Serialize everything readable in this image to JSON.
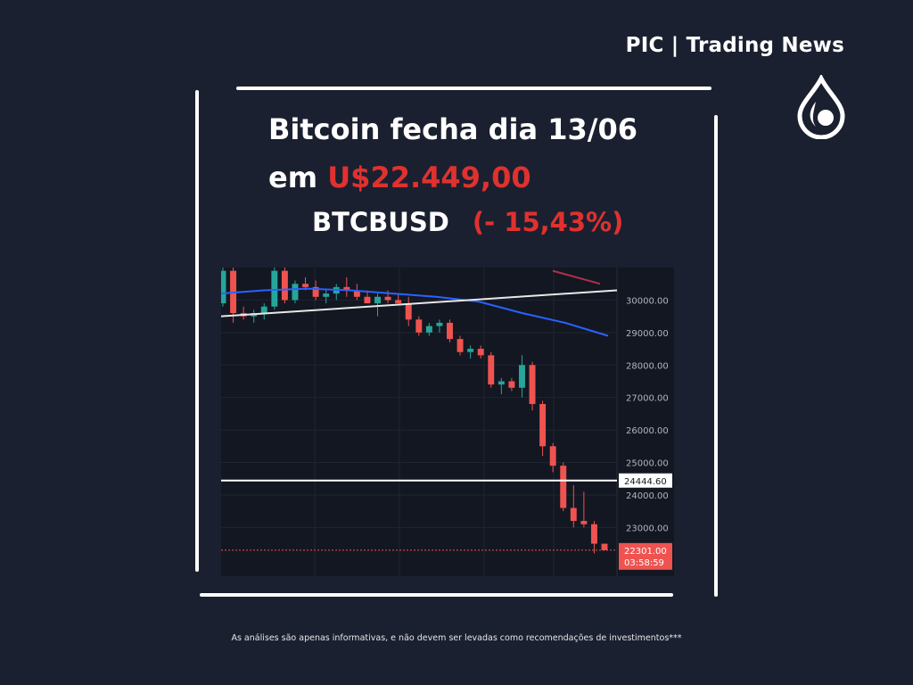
{
  "brand": "PIC | Trading News",
  "logo_icon": "drop-flame-icon",
  "headline": {
    "line1": "Bitcoin fecha dia 13/06",
    "line2_prefix": "em",
    "line2_price": "U$22.449,00"
  },
  "ticker": {
    "symbol": "BTCBUSD",
    "change": "(- 15,43%)"
  },
  "colors": {
    "background": "#1b2030",
    "accent_red": "#e0312f",
    "up_candle": "#26a69a",
    "down_candle": "#ef5350",
    "ma_blue": "#2962ff",
    "ma_red": "#b0304a"
  },
  "chart_data": {
    "type": "candlestick",
    "ylim": [
      21500,
      31000
    ],
    "y_ticks": [
      30000,
      29000,
      28000,
      27000,
      26000,
      25000,
      24000,
      23000
    ],
    "y_tick_labels": [
      "30000.00",
      "29000.00",
      "28000.00",
      "27000.00",
      "26000.00",
      "25000.00",
      "24000.00",
      "23000.00"
    ],
    "candles": [
      {
        "o": 29900,
        "h": 31000,
        "l": 29800,
        "c": 30900
      },
      {
        "o": 30900,
        "h": 31000,
        "l": 29300,
        "c": 29600
      },
      {
        "o": 29600,
        "h": 29800,
        "l": 29400,
        "c": 29500
      },
      {
        "o": 29500,
        "h": 29700,
        "l": 29300,
        "c": 29600
      },
      {
        "o": 29600,
        "h": 29900,
        "l": 29400,
        "c": 29800
      },
      {
        "o": 29800,
        "h": 31000,
        "l": 29700,
        "c": 30900
      },
      {
        "o": 30900,
        "h": 31000,
        "l": 29900,
        "c": 30000
      },
      {
        "o": 30000,
        "h": 30600,
        "l": 29900,
        "c": 30500
      },
      {
        "o": 30500,
        "h": 30700,
        "l": 30300,
        "c": 30400
      },
      {
        "o": 30400,
        "h": 30600,
        "l": 30000,
        "c": 30100
      },
      {
        "o": 30100,
        "h": 30300,
        "l": 29900,
        "c": 30200
      },
      {
        "o": 30200,
        "h": 30500,
        "l": 30000,
        "c": 30400
      },
      {
        "o": 30400,
        "h": 30700,
        "l": 30100,
        "c": 30300
      },
      {
        "o": 30300,
        "h": 30500,
        "l": 30000,
        "c": 30100
      },
      {
        "o": 30100,
        "h": 30300,
        "l": 29900,
        "c": 29900
      },
      {
        "o": 29900,
        "h": 30200,
        "l": 29500,
        "c": 30100
      },
      {
        "o": 30100,
        "h": 30300,
        "l": 29900,
        "c": 30000
      },
      {
        "o": 30000,
        "h": 30200,
        "l": 29900,
        "c": 29900
      },
      {
        "o": 29900,
        "h": 30100,
        "l": 29200,
        "c": 29400
      },
      {
        "o": 29400,
        "h": 29500,
        "l": 28900,
        "c": 29000
      },
      {
        "o": 29000,
        "h": 29300,
        "l": 28900,
        "c": 29200
      },
      {
        "o": 29200,
        "h": 29400,
        "l": 29000,
        "c": 29300
      },
      {
        "o": 29300,
        "h": 29400,
        "l": 28700,
        "c": 28800
      },
      {
        "o": 28800,
        "h": 28900,
        "l": 28300,
        "c": 28400
      },
      {
        "o": 28400,
        "h": 28600,
        "l": 28200,
        "c": 28500
      },
      {
        "o": 28500,
        "h": 28600,
        "l": 28200,
        "c": 28300
      },
      {
        "o": 28300,
        "h": 28400,
        "l": 27300,
        "c": 27400
      },
      {
        "o": 27400,
        "h": 27600,
        "l": 27100,
        "c": 27500
      },
      {
        "o": 27500,
        "h": 27600,
        "l": 27200,
        "c": 27300
      },
      {
        "o": 27300,
        "h": 28300,
        "l": 27000,
        "c": 28000
      },
      {
        "o": 28000,
        "h": 28100,
        "l": 26600,
        "c": 26800
      },
      {
        "o": 26800,
        "h": 26900,
        "l": 25200,
        "c": 25500
      },
      {
        "o": 25500,
        "h": 25600,
        "l": 24700,
        "c": 24900
      },
      {
        "o": 24900,
        "h": 25000,
        "l": 23500,
        "c": 23600
      },
      {
        "o": 23600,
        "h": 24300,
        "l": 23000,
        "c": 23200
      },
      {
        "o": 23200,
        "h": 24100,
        "l": 23000,
        "c": 23100
      },
      {
        "o": 23100,
        "h": 23200,
        "l": 22200,
        "c": 22500
      },
      {
        "o": 22500,
        "h": 22500,
        "l": 22300,
        "c": 22301
      }
    ],
    "ma_blue": [
      30200,
      30300,
      30350,
      30300,
      30200,
      30100,
      29950,
      29600,
      29300,
      28900
    ],
    "ma_red": [
      30900,
      30700,
      30500
    ],
    "support_level": 24444.6,
    "support_label": "24444.60",
    "trendline": [
      29500,
      30300
    ],
    "last_price": 22301.0,
    "last_price_label": "22301.00",
    "countdown_label": "03:58:59"
  },
  "disclaimer": "As análises são apenas informativas, e não devem ser levadas como recomendações de investimentos***"
}
